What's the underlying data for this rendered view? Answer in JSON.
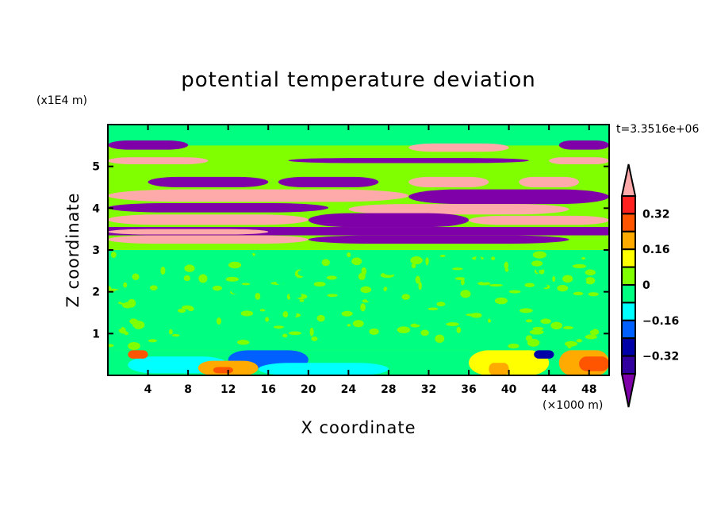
{
  "chart_data": {
    "type": "heatmap",
    "subtype": "filled-contour",
    "title": "potential temperature deviation",
    "xlabel": "X coordinate",
    "ylabel": "Z coordinate",
    "x_unit": "(×1000 m)",
    "y_unit": "(x1E4 m)",
    "time_label": "t=3.3516e+06",
    "xlim": [
      0,
      50
    ],
    "ylim": [
      0,
      6
    ],
    "x_ticks": [
      "4",
      "8",
      "12",
      "16",
      "20",
      "24",
      "28",
      "32",
      "36",
      "40",
      "44",
      "48"
    ],
    "y_ticks": [
      "1",
      "2",
      "3",
      "4",
      "5"
    ],
    "grid": false,
    "colorbar": {
      "position": "right",
      "levels": [
        -0.4,
        -0.32,
        -0.24,
        -0.16,
        -0.08,
        0,
        0.08,
        0.16,
        0.24,
        0.32,
        0.4
      ],
      "tick_labels": [
        "0.32",
        "0.16",
        "0",
        "−0.16",
        "−0.32"
      ],
      "tick_values": [
        0.32,
        0.16,
        0,
        -0.16,
        -0.32
      ],
      "colors_low_to_high": [
        "#7f00a8",
        "#3300a0",
        "#0000a8",
        "#0060ff",
        "#00ffff",
        "#00ff80",
        "#80ff00",
        "#ffff00",
        "#ffaa00",
        "#ff5500",
        "#ff2020",
        "#ffaaaa"
      ],
      "extend": "both"
    },
    "approximate_regions": [
      {
        "x": [
          0,
          50
        ],
        "z": [
          0,
          6
        ],
        "value": 0.04
      },
      {
        "x": [
          0,
          50
        ],
        "z": [
          5.5,
          6
        ],
        "value": -0.04
      },
      {
        "x": [
          0,
          50
        ],
        "z": [
          0.6,
          3.0
        ],
        "value": -0.04
      },
      {
        "x": [
          0,
          8
        ],
        "z": [
          5.4,
          5.62
        ],
        "value": -0.5
      },
      {
        "x": [
          45,
          50
        ],
        "z": [
          5.4,
          5.62
        ],
        "value": -0.5
      },
      {
        "x": [
          30,
          40
        ],
        "z": [
          5.35,
          5.55
        ],
        "value": 0.5
      },
      {
        "x": [
          0,
          10
        ],
        "z": [
          5.05,
          5.22
        ],
        "value": 0.5
      },
      {
        "x": [
          18,
          42
        ],
        "z": [
          5.08,
          5.2
        ],
        "value": -0.5
      },
      {
        "x": [
          44,
          50
        ],
        "z": [
          5.05,
          5.22
        ],
        "value": 0.5
      },
      {
        "x": [
          4,
          16
        ],
        "z": [
          4.5,
          4.75
        ],
        "value": -0.5
      },
      {
        "x": [
          17,
          27
        ],
        "z": [
          4.5,
          4.75
        ],
        "value": -0.5
      },
      {
        "x": [
          30,
          38
        ],
        "z": [
          4.5,
          4.75
        ],
        "value": 0.5
      },
      {
        "x": [
          41,
          47
        ],
        "z": [
          4.5,
          4.75
        ],
        "value": 0.5
      },
      {
        "x": [
          0,
          30
        ],
        "z": [
          4.15,
          4.45
        ],
        "value": 0.5
      },
      {
        "x": [
          30,
          50
        ],
        "z": [
          4.1,
          4.45
        ],
        "value": -0.5
      },
      {
        "x": [
          0,
          22
        ],
        "z": [
          3.9,
          4.12
        ],
        "value": -0.5
      },
      {
        "x": [
          24,
          46
        ],
        "z": [
          3.85,
          4.1
        ],
        "value": 0.5
      },
      {
        "x": [
          0,
          20
        ],
        "z": [
          3.6,
          3.85
        ],
        "value": 0.5
      },
      {
        "x": [
          20,
          36
        ],
        "z": [
          3.55,
          3.88
        ],
        "value": -0.5
      },
      {
        "x": [
          36,
          50
        ],
        "z": [
          3.6,
          3.82
        ],
        "value": 0.5
      },
      {
        "x": [
          0,
          50
        ],
        "z": [
          3.35,
          3.55
        ],
        "value": -0.5
      },
      {
        "x": [
          0,
          16
        ],
        "z": [
          3.37,
          3.5
        ],
        "value": 0.5
      },
      {
        "x": [
          0,
          20
        ],
        "z": [
          3.15,
          3.35
        ],
        "value": 0.5
      },
      {
        "x": [
          20,
          46
        ],
        "z": [
          3.15,
          3.35
        ],
        "value": -0.5
      },
      {
        "x": [
          0,
          50
        ],
        "z": [
          0,
          0.6
        ],
        "value": -0.04
      },
      {
        "x": [
          2,
          12
        ],
        "z": [
          0.05,
          0.45
        ],
        "value": -0.12
      },
      {
        "x": [
          12,
          20
        ],
        "z": [
          0.15,
          0.6
        ],
        "value": -0.2
      },
      {
        "x": [
          15,
          28
        ],
        "z": [
          0,
          0.3
        ],
        "value": -0.12
      },
      {
        "x": [
          9,
          15
        ],
        "z": [
          0,
          0.35
        ],
        "value": 0.2
      },
      {
        "x": [
          10.5,
          12.5
        ],
        "z": [
          0.05,
          0.2
        ],
        "value": 0.28
      },
      {
        "x": [
          36,
          44
        ],
        "z": [
          0,
          0.6
        ],
        "value": 0.12
      },
      {
        "x": [
          38,
          40
        ],
        "z": [
          0,
          0.3
        ],
        "value": 0.2
      },
      {
        "x": [
          45,
          50
        ],
        "z": [
          0,
          0.6
        ],
        "value": 0.2
      },
      {
        "x": [
          47,
          50
        ],
        "z": [
          0.1,
          0.45
        ],
        "value": 0.28
      },
      {
        "x": [
          42.5,
          44.5
        ],
        "z": [
          0.4,
          0.6
        ],
        "value": -0.28
      },
      {
        "x": [
          2,
          4
        ],
        "z": [
          0.4,
          0.6
        ],
        "value": 0.28
      }
    ]
  }
}
